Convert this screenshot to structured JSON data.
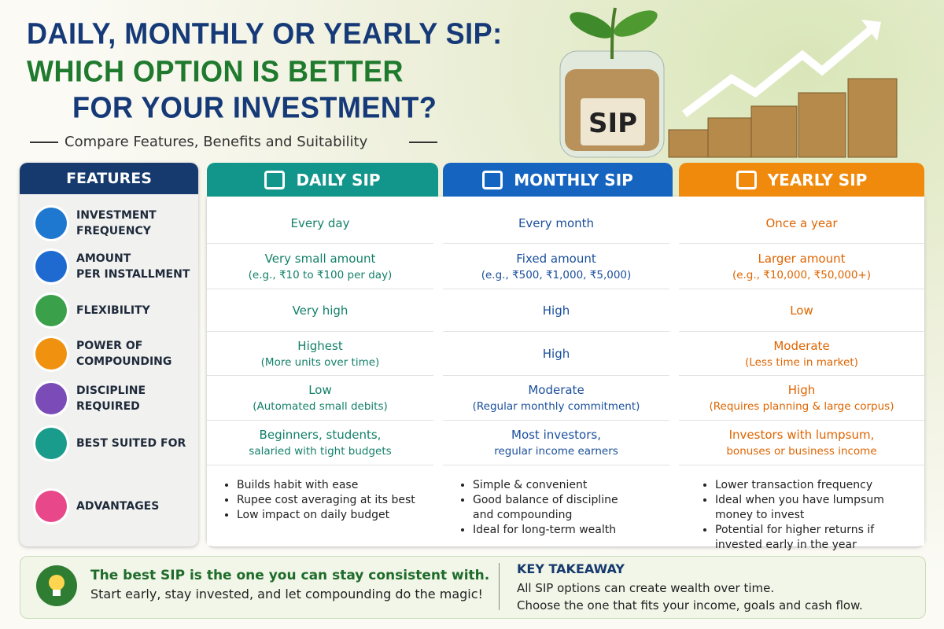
{
  "header": {
    "title_lines": [
      "DAILY, MONTHLY OR YEARLY SIP:",
      "WHICH OPTION IS BETTER",
      "FOR YOUR INVESTMENT?"
    ],
    "subtitle": "Compare Features, Benefits and Suitability",
    "jar_label": "SIP"
  },
  "table": {
    "features_header": "FEATURES",
    "columns": [
      "DAILY SIP",
      "MONTHLY SIP",
      "YEARLY SIP"
    ],
    "rows": [
      {
        "feature": [
          "INVESTMENT",
          "FREQUENCY"
        ],
        "cells": [
          [
            "Every day"
          ],
          [
            "Every month"
          ],
          [
            "Once a year"
          ]
        ]
      },
      {
        "feature": [
          "AMOUNT",
          "PER INSTALLMENT"
        ],
        "cells": [
          [
            "Very small amount",
            "(e.g., ₹10 to ₹100 per day)"
          ],
          [
            "Fixed amount",
            "(e.g., ₹500, ₹1,000, ₹5,000)"
          ],
          [
            "Larger amount",
            "(e.g., ₹10,000, ₹50,000+)"
          ]
        ]
      },
      {
        "feature": [
          "FLEXIBILITY"
        ],
        "cells": [
          [
            "Very high"
          ],
          [
            "High"
          ],
          [
            "Low"
          ]
        ]
      },
      {
        "feature": [
          "POWER OF",
          "COMPOUNDING"
        ],
        "cells": [
          [
            "Highest",
            "(More units over time)"
          ],
          [
            "High"
          ],
          [
            "Moderate",
            "(Less time in market)"
          ]
        ]
      },
      {
        "feature": [
          "DISCIPLINE",
          "REQUIRED"
        ],
        "cells": [
          [
            "Low",
            "(Automated small debits)"
          ],
          [
            "Moderate",
            "(Regular monthly commitment)"
          ],
          [
            "High",
            "(Requires planning & large corpus)"
          ]
        ]
      },
      {
        "feature": [
          "BEST SUITED FOR"
        ],
        "cells": [
          [
            "Beginners, students,",
            "salaried with tight budgets"
          ],
          [
            "Most investors,",
            "regular income earners"
          ],
          [
            "Investors with lumpsum,",
            "bonuses or business income"
          ]
        ]
      },
      {
        "feature": [
          "ADVANTAGES"
        ],
        "bullets": [
          [
            "Builds habit with ease",
            "Rupee cost averaging at its best",
            "Low impact on daily budget"
          ],
          [
            "Simple & convenient",
            "Good balance of discipline and compounding",
            "Ideal for long-term wealth"
          ],
          [
            "Lower transaction frequency",
            "Ideal when you have lumpsum money to invest",
            "Potential for higher returns if invested early in the year"
          ]
        ]
      }
    ]
  },
  "footer": {
    "tip_lines": [
      "The best SIP is the one you can stay consistent with.",
      "Start early, stay invested, and let compounding do the magic!"
    ],
    "takeaway_title": "KEY TAKEAWAY",
    "takeaway_lines": [
      "All SIP options can create wealth over time.",
      "Choose the one that fits your income, goals and cash flow."
    ]
  }
}
